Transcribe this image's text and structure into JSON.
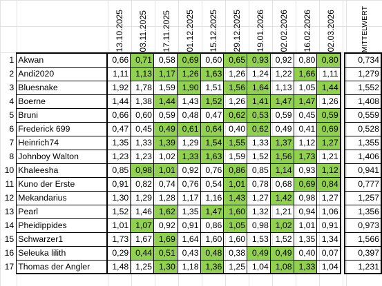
{
  "dates": [
    "13.10.2025",
    "03.11.2025",
    "17.11.2025",
    "01.12.2025",
    "15.12.2025",
    "29.12.2025",
    "19.01.2026",
    "02.02.2026",
    "16.02.2026",
    "02.03.2026"
  ],
  "avg_header": "MITTELWERT",
  "rows": [
    {
      "num": "1",
      "name": "Akwan",
      "values": [
        "0,66",
        "0,71",
        "0,58",
        "0,69",
        "0,60",
        "0,65",
        "0,93",
        "0,92",
        "0,80",
        "0,80"
      ],
      "hl": [
        false,
        true,
        false,
        true,
        false,
        true,
        true,
        false,
        false,
        true
      ],
      "avg": "0,734"
    },
    {
      "num": "2",
      "name": "Andi2020",
      "values": [
        "1,11",
        "1,13",
        "1,17",
        "1,26",
        "1,63",
        "1,26",
        "1,24",
        "1,22",
        "1,66",
        "1,11"
      ],
      "hl": [
        false,
        true,
        true,
        true,
        true,
        false,
        false,
        false,
        true,
        false
      ],
      "avg": "1,279"
    },
    {
      "num": "3",
      "name": "Bluesnake",
      "values": [
        "1,92",
        "1,78",
        "1,59",
        "1,90",
        "1,51",
        "1,56",
        "1,64",
        "1,13",
        "1,05",
        "1,44"
      ],
      "hl": [
        false,
        false,
        false,
        true,
        false,
        true,
        true,
        false,
        false,
        true
      ],
      "avg": "1,552"
    },
    {
      "num": "4",
      "name": "Boerne",
      "values": [
        "1,44",
        "1,38",
        "1,44",
        "1,43",
        "1,52",
        "1,26",
        "1,41",
        "1,47",
        "1,47",
        "1,26"
      ],
      "hl": [
        false,
        false,
        true,
        false,
        true,
        false,
        true,
        true,
        true,
        false
      ],
      "avg": "1,408"
    },
    {
      "num": "5",
      "name": "Bruni",
      "values": [
        "0,66",
        "0,60",
        "0,59",
        "0,48",
        "0,47",
        "0,62",
        "0,53",
        "0,59",
        "0,45",
        "0,59"
      ],
      "hl": [
        false,
        false,
        false,
        false,
        false,
        true,
        true,
        false,
        false,
        true
      ],
      "avg": "0,559"
    },
    {
      "num": "6",
      "name": "Frederick 699",
      "values": [
        "0,47",
        "0,45",
        "0,49",
        "0,61",
        "0,64",
        "0,40",
        "0,62",
        "0,49",
        "0,41",
        "0,69"
      ],
      "hl": [
        false,
        false,
        true,
        true,
        true,
        false,
        true,
        false,
        false,
        true
      ],
      "avg": "0,528"
    },
    {
      "num": "7",
      "name": "Heinrich74",
      "values": [
        "1,35",
        "1,33",
        "1,39",
        "1,29",
        "1,54",
        "1,55",
        "1,33",
        "1,37",
        "1,12",
        "1,27"
      ],
      "hl": [
        false,
        false,
        true,
        false,
        true,
        true,
        false,
        true,
        false,
        true
      ],
      "avg": "1,355"
    },
    {
      "num": "8",
      "name": "Johnboy Walton",
      "values": [
        "1,23",
        "1,23",
        "1,02",
        "1,33",
        "1,63",
        "1,59",
        "1,52",
        "1,56",
        "1,73",
        "1,21"
      ],
      "hl": [
        false,
        false,
        false,
        true,
        true,
        false,
        false,
        true,
        true,
        false
      ],
      "avg": "1,406"
    },
    {
      "num": "10",
      "name": "Khaleesha",
      "values": [
        "0,85",
        "0,98",
        "1,01",
        "0,92",
        "0,76",
        "0,86",
        "0,85",
        "1,14",
        "0,93",
        "1,12"
      ],
      "hl": [
        false,
        true,
        true,
        false,
        false,
        true,
        false,
        true,
        false,
        true
      ],
      "avg": "0,941"
    },
    {
      "num": "11",
      "name": "Kuno der Erste",
      "values": [
        "0,91",
        "0,82",
        "0,74",
        "0,76",
        "0,54",
        "1,01",
        "0,78",
        "0,68",
        "0,69",
        "0,84"
      ],
      "hl": [
        false,
        false,
        false,
        false,
        false,
        true,
        false,
        false,
        true,
        true
      ],
      "avg": "0,777"
    },
    {
      "num": "12",
      "name": "Mekandarius",
      "values": [
        "1,30",
        "1,29",
        "1,28",
        "1,17",
        "1,16",
        "1,43",
        "1,27",
        "1,42",
        "0,98",
        "1,27"
      ],
      "hl": [
        false,
        false,
        false,
        false,
        false,
        true,
        false,
        true,
        false,
        false
      ],
      "avg": "1,257"
    },
    {
      "num": "13",
      "name": "Pearl",
      "values": [
        "1,52",
        "1,46",
        "1,62",
        "1,35",
        "1,47",
        "1,60",
        "1,32",
        "1,21",
        "0,94",
        "1,06"
      ],
      "hl": [
        false,
        false,
        true,
        false,
        true,
        true,
        false,
        false,
        false,
        false
      ],
      "avg": "1,356"
    },
    {
      "num": "14",
      "name": "Pheidippides",
      "values": [
        "1,01",
        "1,07",
        "0,92",
        "0,91",
        "0,86",
        "1,05",
        "0,98",
        "1,02",
        "1,01",
        "0,91"
      ],
      "hl": [
        false,
        true,
        false,
        false,
        false,
        true,
        false,
        true,
        false,
        false
      ],
      "avg": "0,973"
    },
    {
      "num": "15",
      "name": "Schwarzer1",
      "values": [
        "1,73",
        "1,67",
        "1,69",
        "1,64",
        "1,60",
        "1,60",
        "1,53",
        "1,52",
        "1,35",
        "1,34"
      ],
      "hl": [
        false,
        false,
        true,
        false,
        false,
        false,
        false,
        false,
        false,
        false
      ],
      "avg": "1,566"
    },
    {
      "num": "16",
      "name": "Seleuka lilith",
      "values": [
        "0,29",
        "0,44",
        "0,51",
        "0,43",
        "0,48",
        "0,38",
        "0,49",
        "0,49",
        "0,40",
        "0,07"
      ],
      "hl": [
        false,
        true,
        true,
        false,
        true,
        false,
        true,
        true,
        false,
        false
      ],
      "avg": "0,397"
    },
    {
      "num": "17",
      "name": "Thomas der Angler",
      "values": [
        "1,48",
        "1,25",
        "1,30",
        "1,18",
        "1,36",
        "1,25",
        "1,04",
        "1,08",
        "1,33",
        "1,04"
      ],
      "hl": [
        false,
        false,
        true,
        false,
        true,
        false,
        false,
        true,
        true,
        false
      ],
      "avg": "1,231"
    }
  ],
  "colors": {
    "highlight": "#92d050",
    "border": "#000000",
    "gridline": "#e2e2e2"
  }
}
